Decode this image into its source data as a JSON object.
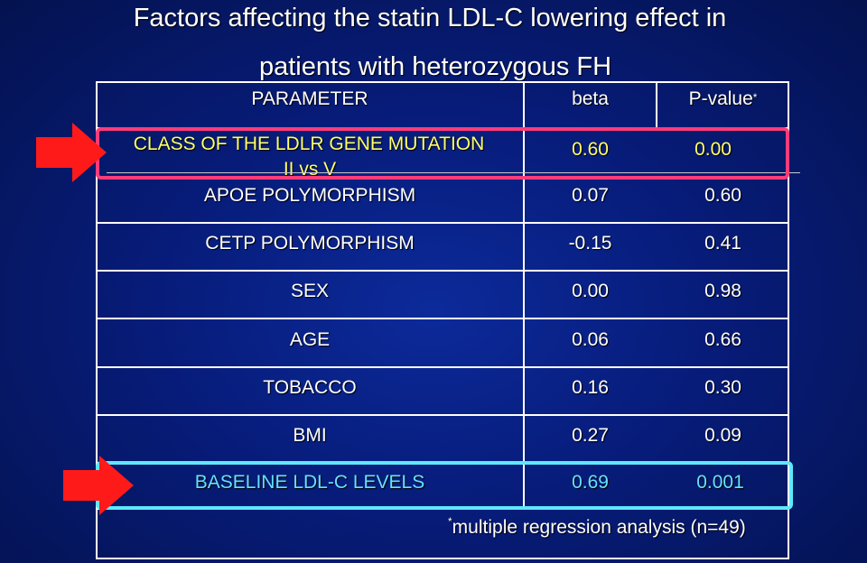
{
  "title": {
    "line1": "Factors affecting the statin LDL-C lowering  effect in",
    "line2": "patients with heterozygous FH"
  },
  "table": {
    "headers": {
      "parameter": "PARAMETER",
      "beta": "beta",
      "pvalue": "P-value",
      "pvalue_marker": "*"
    },
    "rows": [
      {
        "param_line1": "CLASS OF THE LDLR GENE MUTATION",
        "param_line2": "II vs V",
        "beta": "0.60",
        "pvalue": "0.00"
      },
      {
        "param": "APOE POLYMORPHISM",
        "beta": "0.07",
        "pvalue": "0.60"
      },
      {
        "param": "CETP POLYMORPHISM",
        "beta": "-0.15",
        "pvalue": "0.41"
      },
      {
        "param": "SEX",
        "beta": "0.00",
        "pvalue": "0.98"
      },
      {
        "param": "AGE",
        "beta": "0.06",
        "pvalue": "0.66"
      },
      {
        "param": "TOBACCO",
        "beta": "0.16",
        "pvalue": "0.30"
      },
      {
        "param": "BMI",
        "beta": "0.27",
        "pvalue": "0.09"
      },
      {
        "param": "BASELINE LDL-C LEVELS",
        "beta": "0.69",
        "pvalue": "0.001"
      }
    ]
  },
  "footnote": {
    "marker": "*",
    "text": "multiple regression analysis (n=49)"
  },
  "colors": {
    "highlight_red": "#ff3b7a",
    "highlight_cyan": "#5ee8ff",
    "row1_text": "#ffff66",
    "last_row_text": "#66e0ff",
    "arrow": "#ff1a1a"
  }
}
